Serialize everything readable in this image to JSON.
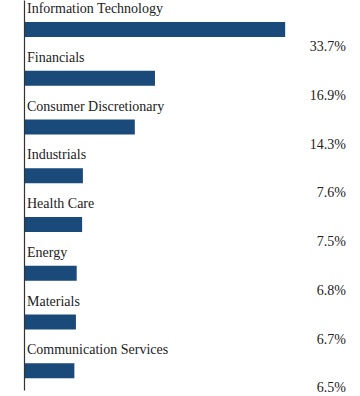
{
  "chart_data": {
    "type": "bar",
    "orientation": "horizontal",
    "categories": [
      "Information Technology",
      "Financials",
      "Consumer Discretionary",
      "Industrials",
      "Health Care",
      "Energy",
      "Materials",
      "Communication Services"
    ],
    "values": [
      33.7,
      16.9,
      14.3,
      7.6,
      7.5,
      6.8,
      6.7,
      6.5
    ],
    "value_labels": [
      "33.7%",
      "16.9%",
      "14.3%",
      "7.6%",
      "7.5%",
      "6.8%",
      "6.7%",
      "6.5%"
    ],
    "color": "#1a4a7a",
    "xlim": [
      0,
      40
    ],
    "data_labels": true,
    "tick_labels": false
  }
}
